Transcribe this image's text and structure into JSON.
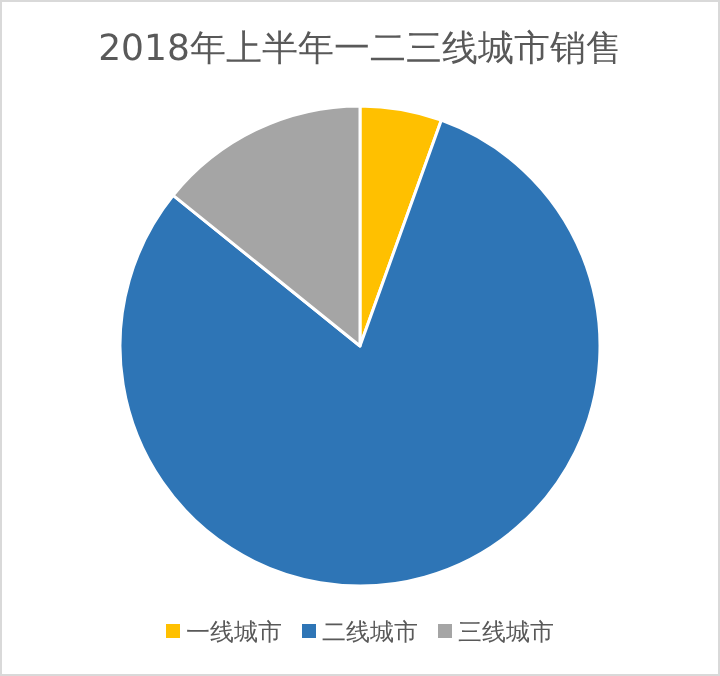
{
  "chart_data": {
    "type": "pie",
    "title": "2018年上半年一二三线城市销售",
    "categories": [
      "一线城市",
      "二线城市",
      "三线城市"
    ],
    "values": [
      5.5,
      80.3,
      14.2
    ],
    "colors": [
      "#ffc000",
      "#2e75b6",
      "#a5a5a5"
    ],
    "legend": "bottom"
  }
}
